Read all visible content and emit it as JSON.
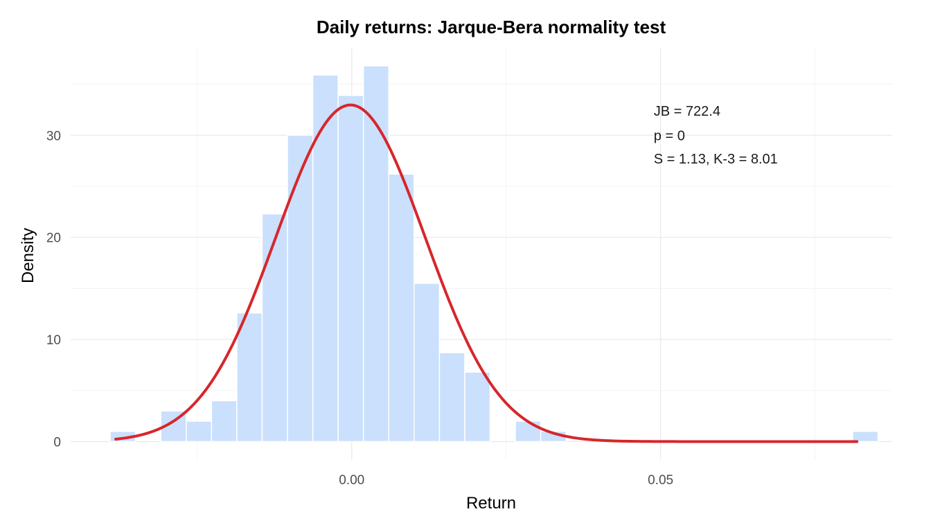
{
  "chart_data": {
    "type": "bar",
    "subtype": "histogram-with-density",
    "title": "Daily returns: Jarque-Bera normality test",
    "xlabel": "Return",
    "ylabel": "Density",
    "xlim": [
      -0.0455,
      0.0875
    ],
    "ylim": [
      -1.8,
      38.5
    ],
    "x_ticks": [
      {
        "value": 0.0,
        "label": "0.00"
      },
      {
        "value": 0.05,
        "label": "0.05"
      }
    ],
    "x_minor_ticks": [
      -0.025,
      0.025,
      0.075
    ],
    "y_ticks": [
      {
        "value": 0,
        "label": "0"
      },
      {
        "value": 10,
        "label": "10"
      },
      {
        "value": 20,
        "label": "20"
      },
      {
        "value": 30,
        "label": "30"
      }
    ],
    "y_minor_ticks": [
      5,
      15,
      25,
      35
    ],
    "grid": true,
    "bins": [
      {
        "x0": -0.0391,
        "x1": -0.035,
        "density": 1
      },
      {
        "x0": -0.035,
        "x1": -0.0309,
        "density": 0
      },
      {
        "x0": -0.0309,
        "x1": -0.0268,
        "density": 3
      },
      {
        "x0": -0.0268,
        "x1": -0.0227,
        "density": 2
      },
      {
        "x0": -0.0227,
        "x1": -0.0186,
        "density": 4
      },
      {
        "x0": -0.0186,
        "x1": -0.0145,
        "density": 12.6
      },
      {
        "x0": -0.0145,
        "x1": -0.0104,
        "density": 22.3
      },
      {
        "x0": -0.0104,
        "x1": -0.0063,
        "density": 30
      },
      {
        "x0": -0.0063,
        "x1": -0.0022,
        "density": 35.9
      },
      {
        "x0": -0.0022,
        "x1": 0.0019,
        "density": 33.9
      },
      {
        "x0": 0.0019,
        "x1": 0.006,
        "density": 36.8
      },
      {
        "x0": 0.006,
        "x1": 0.0101,
        "density": 26.2
      },
      {
        "x0": 0.0101,
        "x1": 0.0142,
        "density": 15.5
      },
      {
        "x0": 0.0142,
        "x1": 0.0183,
        "density": 8.7
      },
      {
        "x0": 0.0183,
        "x1": 0.0224,
        "density": 6.8
      },
      {
        "x0": 0.0224,
        "x1": 0.0265,
        "density": 0
      },
      {
        "x0": 0.0265,
        "x1": 0.0306,
        "density": 2
      },
      {
        "x0": 0.0306,
        "x1": 0.0347,
        "density": 1
      },
      {
        "x0": 0.0811,
        "x1": 0.0852,
        "density": 1
      }
    ],
    "density_curve": {
      "distribution": "normal",
      "mean": -0.0002,
      "sd": 0.0121,
      "x_range": [
        -0.0382,
        0.0818
      ],
      "color": "#d7262b"
    },
    "bar_color": "#cae0fc",
    "annotation": {
      "lines": [
        "JB = 722.4",
        "p = 0",
        "S = 1.13, K-3 = 8.01"
      ],
      "x": 0.0489,
      "y": [
        32.4,
        30.0,
        27.7
      ]
    }
  }
}
